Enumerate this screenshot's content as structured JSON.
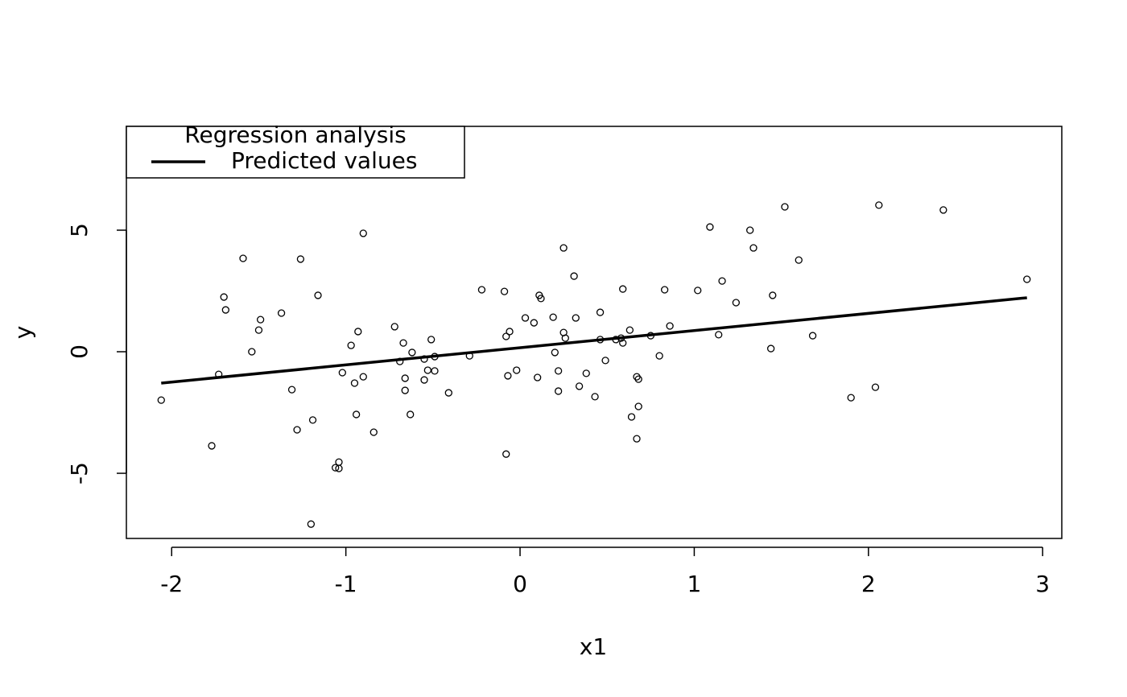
{
  "chart_data": {
    "type": "scatter",
    "xlabel": "x1",
    "ylabel": "y",
    "xlim": [
      -2.26,
      3.11
    ],
    "ylim": [
      -7.68,
      9.27
    ],
    "xticks": [
      -2,
      -1,
      0,
      1,
      2,
      3
    ],
    "yticks": [
      -5,
      0,
      5
    ],
    "color": "#000000",
    "x": [
      -2.06,
      -1.77,
      -1.73,
      -1.7,
      -1.69,
      -1.59,
      -1.54,
      -1.5,
      -1.49,
      -1.37,
      -1.31,
      -1.28,
      -1.26,
      -1.2,
      -1.19,
      -1.16,
      -1.06,
      -1.04,
      -1.04,
      -1.02,
      -0.97,
      -0.95,
      -0.94,
      -0.93,
      -0.9,
      -0.9,
      -0.84,
      -0.72,
      -0.69,
      -0.67,
      -0.66,
      -0.66,
      -0.63,
      -0.62,
      -0.55,
      -0.55,
      -0.53,
      -0.51,
      -0.49,
      -0.49,
      -0.41,
      -0.29,
      -0.22,
      -0.09,
      -0.08,
      -0.08,
      -0.07,
      -0.06,
      -0.02,
      0.03,
      0.08,
      0.1,
      0.11,
      0.12,
      0.19,
      0.2,
      0.22,
      0.22,
      0.25,
      0.25,
      0.26,
      0.31,
      0.32,
      0.34,
      0.38,
      0.43,
      0.46,
      0.46,
      0.49,
      0.55,
      0.58,
      0.59,
      0.59,
      0.63,
      0.64,
      0.67,
      0.67,
      0.68,
      0.68,
      0.75,
      0.8,
      0.83,
      0.86,
      1.02,
      1.09,
      1.14,
      1.16,
      1.24,
      1.32,
      1.34,
      1.44,
      1.45,
      1.52,
      1.6,
      1.68,
      1.9,
      2.04,
      2.06,
      2.43,
      2.91
    ],
    "values": [
      -1.99,
      -3.87,
      -0.93,
      2.25,
      1.72,
      3.84,
      0.0,
      0.89,
      1.32,
      1.59,
      -1.56,
      -3.21,
      3.81,
      -7.09,
      -2.81,
      2.32,
      -4.77,
      -4.54,
      -4.8,
      -0.86,
      0.26,
      -1.29,
      -2.58,
      0.83,
      -1.03,
      4.87,
      -3.31,
      1.03,
      -0.4,
      0.36,
      -1.09,
      -1.59,
      -2.58,
      -0.03,
      -0.3,
      -1.16,
      -0.76,
      0.5,
      -0.2,
      -0.79,
      -1.69,
      -0.17,
      2.55,
      2.48,
      0.63,
      -4.21,
      -0.99,
      0.83,
      -0.76,
      1.39,
      1.19,
      -1.06,
      2.32,
      2.19,
      1.42,
      -0.03,
      -0.79,
      -1.62,
      0.79,
      4.27,
      0.56,
      3.11,
      1.39,
      -1.42,
      -0.89,
      -1.85,
      1.62,
      0.5,
      -0.36,
      0.5,
      0.56,
      2.58,
      0.36,
      0.89,
      -2.68,
      -3.58,
      -1.03,
      -2.25,
      -1.13,
      0.66,
      -0.17,
      2.55,
      1.06,
      2.52,
      5.13,
      0.7,
      2.91,
      2.02,
      5.0,
      4.27,
      0.13,
      2.32,
      5.96,
      3.77,
      0.66,
      -1.89,
      -1.46,
      6.03,
      5.83,
      2.98
    ],
    "lines": [
      {
        "name": "Predicted values",
        "color": "#000000",
        "x": [
          -2.06,
          2.91
        ],
        "values": [
          -1.29,
          2.22
        ]
      }
    ],
    "legend_title": "Regression analysis",
    "legend": "top-left"
  }
}
